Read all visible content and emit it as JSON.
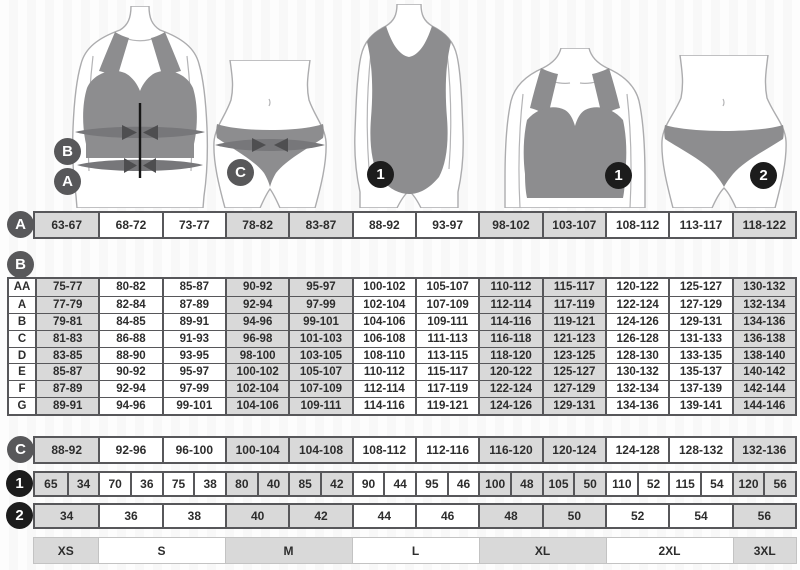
{
  "meta": {
    "title": "Lingerie and swimwear size chart"
  },
  "palette": {
    "cell_shaded": "#d9d9d9",
    "cell_white": "#ffffff",
    "table_border_dark": "#57575a",
    "table_border_light": "#c3c3c3",
    "badge_gray": "#58585a",
    "badge_black": "#1c1c1c",
    "garment_gray": "#8d8d8f",
    "measure_band_gray": "#77777a",
    "text": "#2d2d2d"
  },
  "shading": {
    "shaded_columns": [
      1,
      4,
      5,
      8,
      9,
      12
    ]
  },
  "figures": {
    "bra_measure": {
      "badge_bust": "B",
      "badge_underbust": "A"
    },
    "hips_measure": {
      "badge_hips": "C"
    },
    "swimsuit": {
      "badge": "1"
    },
    "bra": {
      "badge": "1"
    },
    "panty": {
      "badge": "2"
    }
  },
  "underbust_row": {
    "badge": "A",
    "values": [
      "63-67",
      "68-72",
      "73-77",
      "78-82",
      "83-87",
      "88-92",
      "93-97",
      "98-102",
      "103-107",
      "108-112",
      "113-117",
      "118-122"
    ]
  },
  "bust_table": {
    "badge": "B",
    "rows": [
      {
        "label": "AA",
        "values": [
          "75-77",
          "80-82",
          "85-87",
          "90-92",
          "95-97",
          "100-102",
          "105-107",
          "110-112",
          "115-117",
          "120-122",
          "125-127",
          "130-132"
        ]
      },
      {
        "label": "A",
        "values": [
          "77-79",
          "82-84",
          "87-89",
          "92-94",
          "97-99",
          "102-104",
          "107-109",
          "112-114",
          "117-119",
          "122-124",
          "127-129",
          "132-134"
        ]
      },
      {
        "label": "B",
        "values": [
          "79-81",
          "84-85",
          "89-91",
          "94-96",
          "99-101",
          "104-106",
          "109-111",
          "114-116",
          "119-121",
          "124-126",
          "129-131",
          "134-136"
        ]
      },
      {
        "label": "C",
        "values": [
          "81-83",
          "86-88",
          "91-93",
          "96-98",
          "101-103",
          "106-108",
          "111-113",
          "116-118",
          "121-123",
          "126-128",
          "131-133",
          "136-138"
        ]
      },
      {
        "label": "D",
        "values": [
          "83-85",
          "88-90",
          "93-95",
          "98-100",
          "103-105",
          "108-110",
          "113-115",
          "118-120",
          "123-125",
          "128-130",
          "133-135",
          "138-140"
        ]
      },
      {
        "label": "E",
        "values": [
          "85-87",
          "90-92",
          "95-97",
          "100-102",
          "105-107",
          "110-112",
          "115-117",
          "120-122",
          "125-127",
          "130-132",
          "135-137",
          "140-142"
        ]
      },
      {
        "label": "F",
        "values": [
          "87-89",
          "92-94",
          "97-99",
          "102-104",
          "107-109",
          "112-114",
          "117-119",
          "122-124",
          "127-129",
          "132-134",
          "137-139",
          "142-144"
        ]
      },
      {
        "label": "G",
        "values": [
          "89-91",
          "94-96",
          "99-101",
          "104-106",
          "109-111",
          "114-116",
          "119-121",
          "124-126",
          "129-131",
          "134-136",
          "139-141",
          "144-146"
        ]
      }
    ]
  },
  "hips_row": {
    "badge": "C",
    "values": [
      "88-92",
      "92-96",
      "96-100",
      "100-104",
      "104-108",
      "108-112",
      "112-116",
      "116-120",
      "120-124",
      "124-128",
      "128-132",
      "132-136"
    ]
  },
  "bra_size_row": {
    "badge": "1",
    "values": [
      "65",
      "34",
      "70",
      "36",
      "75",
      "38",
      "80",
      "40",
      "85",
      "42",
      "90",
      "44",
      "95",
      "46",
      "100",
      "48",
      "105",
      "50",
      "110",
      "52",
      "115",
      "54",
      "120",
      "56"
    ]
  },
  "panty_size_row": {
    "badge": "2",
    "values": [
      "34",
      "36",
      "38",
      "40",
      "42",
      "44",
      "46",
      "48",
      "50",
      "52",
      "54",
      "56"
    ]
  },
  "letter_size_row": {
    "cells": [
      {
        "label": "XS",
        "span": 1
      },
      {
        "label": "S",
        "span": 2
      },
      {
        "label": "M",
        "span": 2
      },
      {
        "label": "L",
        "span": 2
      },
      {
        "label": "XL",
        "span": 2
      },
      {
        "label": "2XL",
        "span": 2
      },
      {
        "label": "3XL",
        "span": 1
      }
    ]
  }
}
